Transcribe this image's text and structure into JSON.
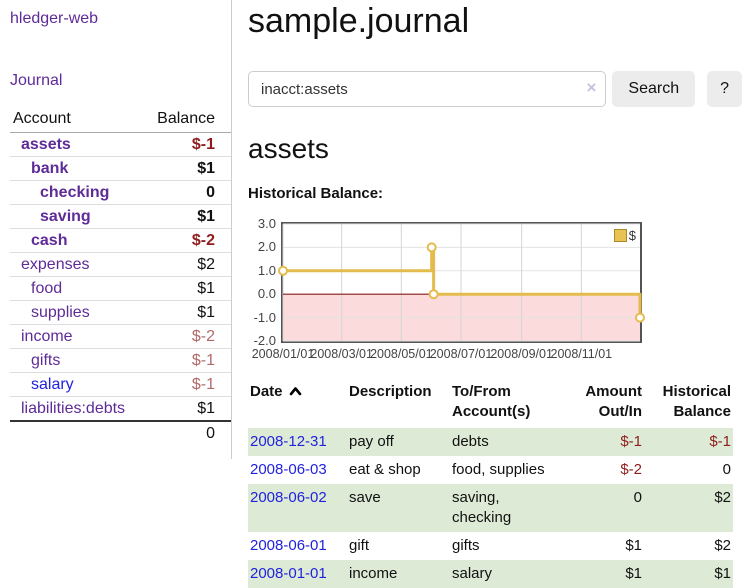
{
  "sidebar": {
    "brand": "hledger-web",
    "nav_journal": "Journal",
    "accounts_table": {
      "headers": {
        "account": "Account",
        "balance": "Balance"
      },
      "rows": [
        {
          "name": "assets",
          "indent": 1,
          "bold": true,
          "link": "purple",
          "balance": "$-1",
          "balance_style": "neg-strong"
        },
        {
          "name": "bank",
          "indent": 2,
          "bold": true,
          "link": "purple",
          "balance": "$1",
          "balance_style": "pos-strong"
        },
        {
          "name": "checking",
          "indent": 3,
          "bold": true,
          "link": "purple",
          "balance": "0",
          "balance_style": "pos-strong"
        },
        {
          "name": "saving",
          "indent": 3,
          "bold": true,
          "link": "purple",
          "balance": "$1",
          "balance_style": "pos-strong"
        },
        {
          "name": "cash",
          "indent": 2,
          "bold": true,
          "link": "purple",
          "balance": "$-2",
          "balance_style": "neg-strong"
        },
        {
          "name": "expenses",
          "indent": 1,
          "bold": false,
          "link": "purple",
          "balance": "$2",
          "balance_style": "pos"
        },
        {
          "name": "food",
          "indent": 2,
          "bold": false,
          "link": "purple",
          "balance": "$1",
          "balance_style": "pos"
        },
        {
          "name": "supplies",
          "indent": 2,
          "bold": false,
          "link": "purple",
          "balance": "$1",
          "balance_style": "pos"
        },
        {
          "name": "income",
          "indent": 1,
          "bold": false,
          "link": "purple",
          "balance": "$-2",
          "balance_style": "neg-muted"
        },
        {
          "name": "gifts",
          "indent": 2,
          "bold": false,
          "link": "purple",
          "balance": "$-1",
          "balance_style": "neg-muted"
        },
        {
          "name": "salary",
          "indent": 2,
          "bold": false,
          "link": "blue",
          "balance": "$-1",
          "balance_style": "neg-muted"
        },
        {
          "name": "liabilities:debts",
          "indent": 1,
          "bold": false,
          "link": "purple",
          "balance": "$1",
          "balance_style": "pos"
        }
      ],
      "total": "0"
    }
  },
  "header": {
    "title": "sample.journal"
  },
  "search": {
    "value": "inacct:assets",
    "clear_icon": "×",
    "button": "Search",
    "help": "?"
  },
  "account_page": {
    "heading": "assets",
    "chart_label": "Historical Balance:"
  },
  "chart_data": {
    "type": "line",
    "title": "Historical Balance:",
    "step": true,
    "series": [
      {
        "name": "$",
        "points": [
          {
            "date": "2008-01-01",
            "value": 1
          },
          {
            "date": "2008-06-01",
            "value": 2
          },
          {
            "date": "2008-06-03",
            "value": 0
          },
          {
            "date": "2008-12-31",
            "value": -1
          }
        ]
      }
    ],
    "xdomain": [
      "2008-01-01",
      "2008-12-31"
    ],
    "ylim": [
      -2,
      3
    ],
    "yticks": [
      "3.0",
      "2.0",
      "1.0",
      "0.0",
      "-1.0",
      "-2.0"
    ],
    "xticks": [
      "2008/01/01",
      "2008/03/01",
      "2008/05/01",
      "2008/07/01",
      "2008/09/01",
      "2008/11/01"
    ],
    "legend": {
      "label": "$",
      "position": "top-right"
    },
    "grid": true
  },
  "register_table": {
    "columns": [
      {
        "label": "Date",
        "align": "left",
        "sorted": "asc"
      },
      {
        "label": "Description",
        "align": "left"
      },
      {
        "label": "To/From Account(s)",
        "align": "left"
      },
      {
        "label": "Amount Out/In",
        "align": "right"
      },
      {
        "label": "Historical Balance",
        "align": "right"
      }
    ],
    "rows": [
      {
        "date": "2008-12-31",
        "description": "pay off",
        "accounts": "debts",
        "amount": "$-1",
        "amount_neg": true,
        "balance": "$-1",
        "balance_neg": true
      },
      {
        "date": "2008-06-03",
        "description": "eat & shop",
        "accounts": "food, supplies",
        "amount": "$-2",
        "amount_neg": true,
        "balance": "0",
        "balance_neg": false
      },
      {
        "date": "2008-06-02",
        "description": "save",
        "accounts": "saving, checking",
        "amount": "0",
        "amount_neg": false,
        "balance": "$2",
        "balance_neg": false
      },
      {
        "date": "2008-06-01",
        "description": "gift",
        "accounts": "gifts",
        "amount": "$1",
        "amount_neg": false,
        "balance": "$2",
        "balance_neg": false
      },
      {
        "date": "2008-01-01",
        "description": "income",
        "accounts": "salary",
        "amount": "$1",
        "amount_neg": false,
        "balance": "$1",
        "balance_neg": false
      }
    ]
  },
  "colors": {
    "link_purple": "#5e2b97",
    "link_blue": "#2222dd",
    "negative_strong": "#8f1d1d",
    "negative_muted": "#b26b6b",
    "row_stripe_green": "#ddebd6",
    "chart_line_gold": "#e4bc4d",
    "chart_negative_region": "#fbdbdb",
    "chart_zero_line": "#8b1a1a",
    "chart_border": "#545454",
    "button_gray": "#ececec"
  }
}
